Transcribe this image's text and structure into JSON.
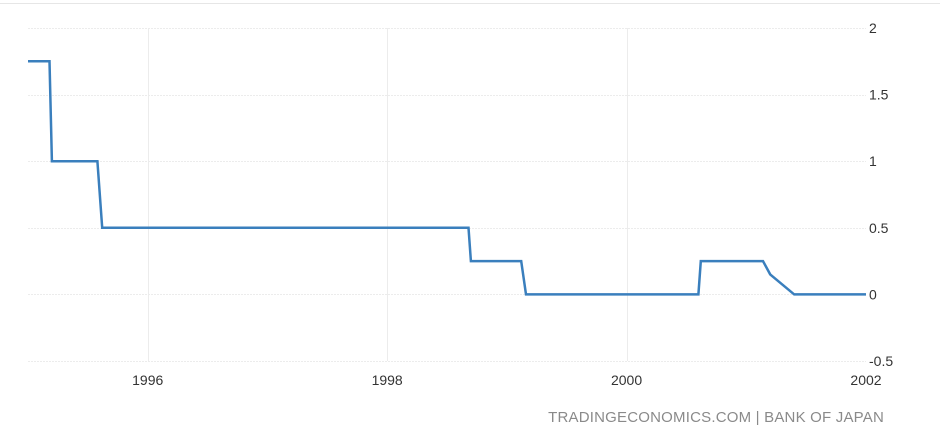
{
  "chart_data": {
    "type": "line",
    "step": true,
    "title": "",
    "xlabel": "",
    "ylabel": "",
    "xlim": [
      1995.0,
      2002.0
    ],
    "ylim": [
      -0.5,
      2
    ],
    "x_ticks": [
      1996,
      1998,
      2000,
      2002
    ],
    "x_tick_labels": [
      "1996",
      "1998",
      "2000",
      "2002"
    ],
    "y_ticks": [
      2,
      1.5,
      1,
      0.5,
      0,
      -0.5
    ],
    "y_tick_labels": [
      "2",
      "1.5",
      "1",
      "0.5",
      "0",
      "-0.5"
    ],
    "grid": true,
    "line_color": "#3a7fbd",
    "series": [
      {
        "x": [
          1995.0,
          1995.18,
          1995.2,
          1995.58,
          1995.62,
          1998.68,
          1998.7,
          1999.12,
          1999.16,
          2000.6,
          2000.62,
          2001.14,
          2001.2,
          2001.4,
          2002.0
        ],
        "values": [
          1.75,
          1.75,
          1.0,
          1.0,
          0.5,
          0.5,
          0.25,
          0.25,
          0.0,
          0.0,
          0.25,
          0.25,
          0.15,
          0.0,
          0.0
        ]
      }
    ]
  },
  "source_text": "TRADINGECONOMICS.COM | BANK OF JAPAN"
}
